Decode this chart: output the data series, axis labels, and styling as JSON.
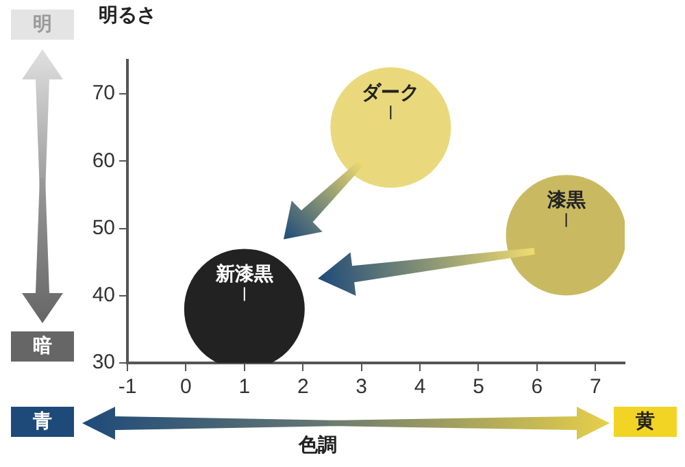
{
  "chart_data": {
    "type": "bubble",
    "xlabel": "色調",
    "ylabel": "明るさ",
    "xlim": [
      -1,
      7.5
    ],
    "ylim": [
      30,
      75
    ],
    "xticks": [
      -1,
      0,
      1,
      2,
      3,
      4,
      5,
      6,
      7
    ],
    "yticks": [
      30,
      40,
      50,
      60,
      70
    ],
    "legend": false,
    "grid": false,
    "annotations": [
      "明",
      "暗",
      "青",
      "黄"
    ],
    "series": [
      {
        "name": "ダーク",
        "color": "#e9d97c",
        "x": [
          3.5
        ],
        "values": [
          65
        ],
        "sizes": [
          1
        ]
      },
      {
        "name": "漆黒",
        "color": "#c9ba62",
        "x": [
          6.5
        ],
        "values": [
          49
        ],
        "sizes": [
          1
        ]
      },
      {
        "name": "新漆黒",
        "color": "#222222",
        "x": [
          1
        ],
        "values": [
          38
        ],
        "sizes": [
          1
        ]
      }
    ]
  }
}
